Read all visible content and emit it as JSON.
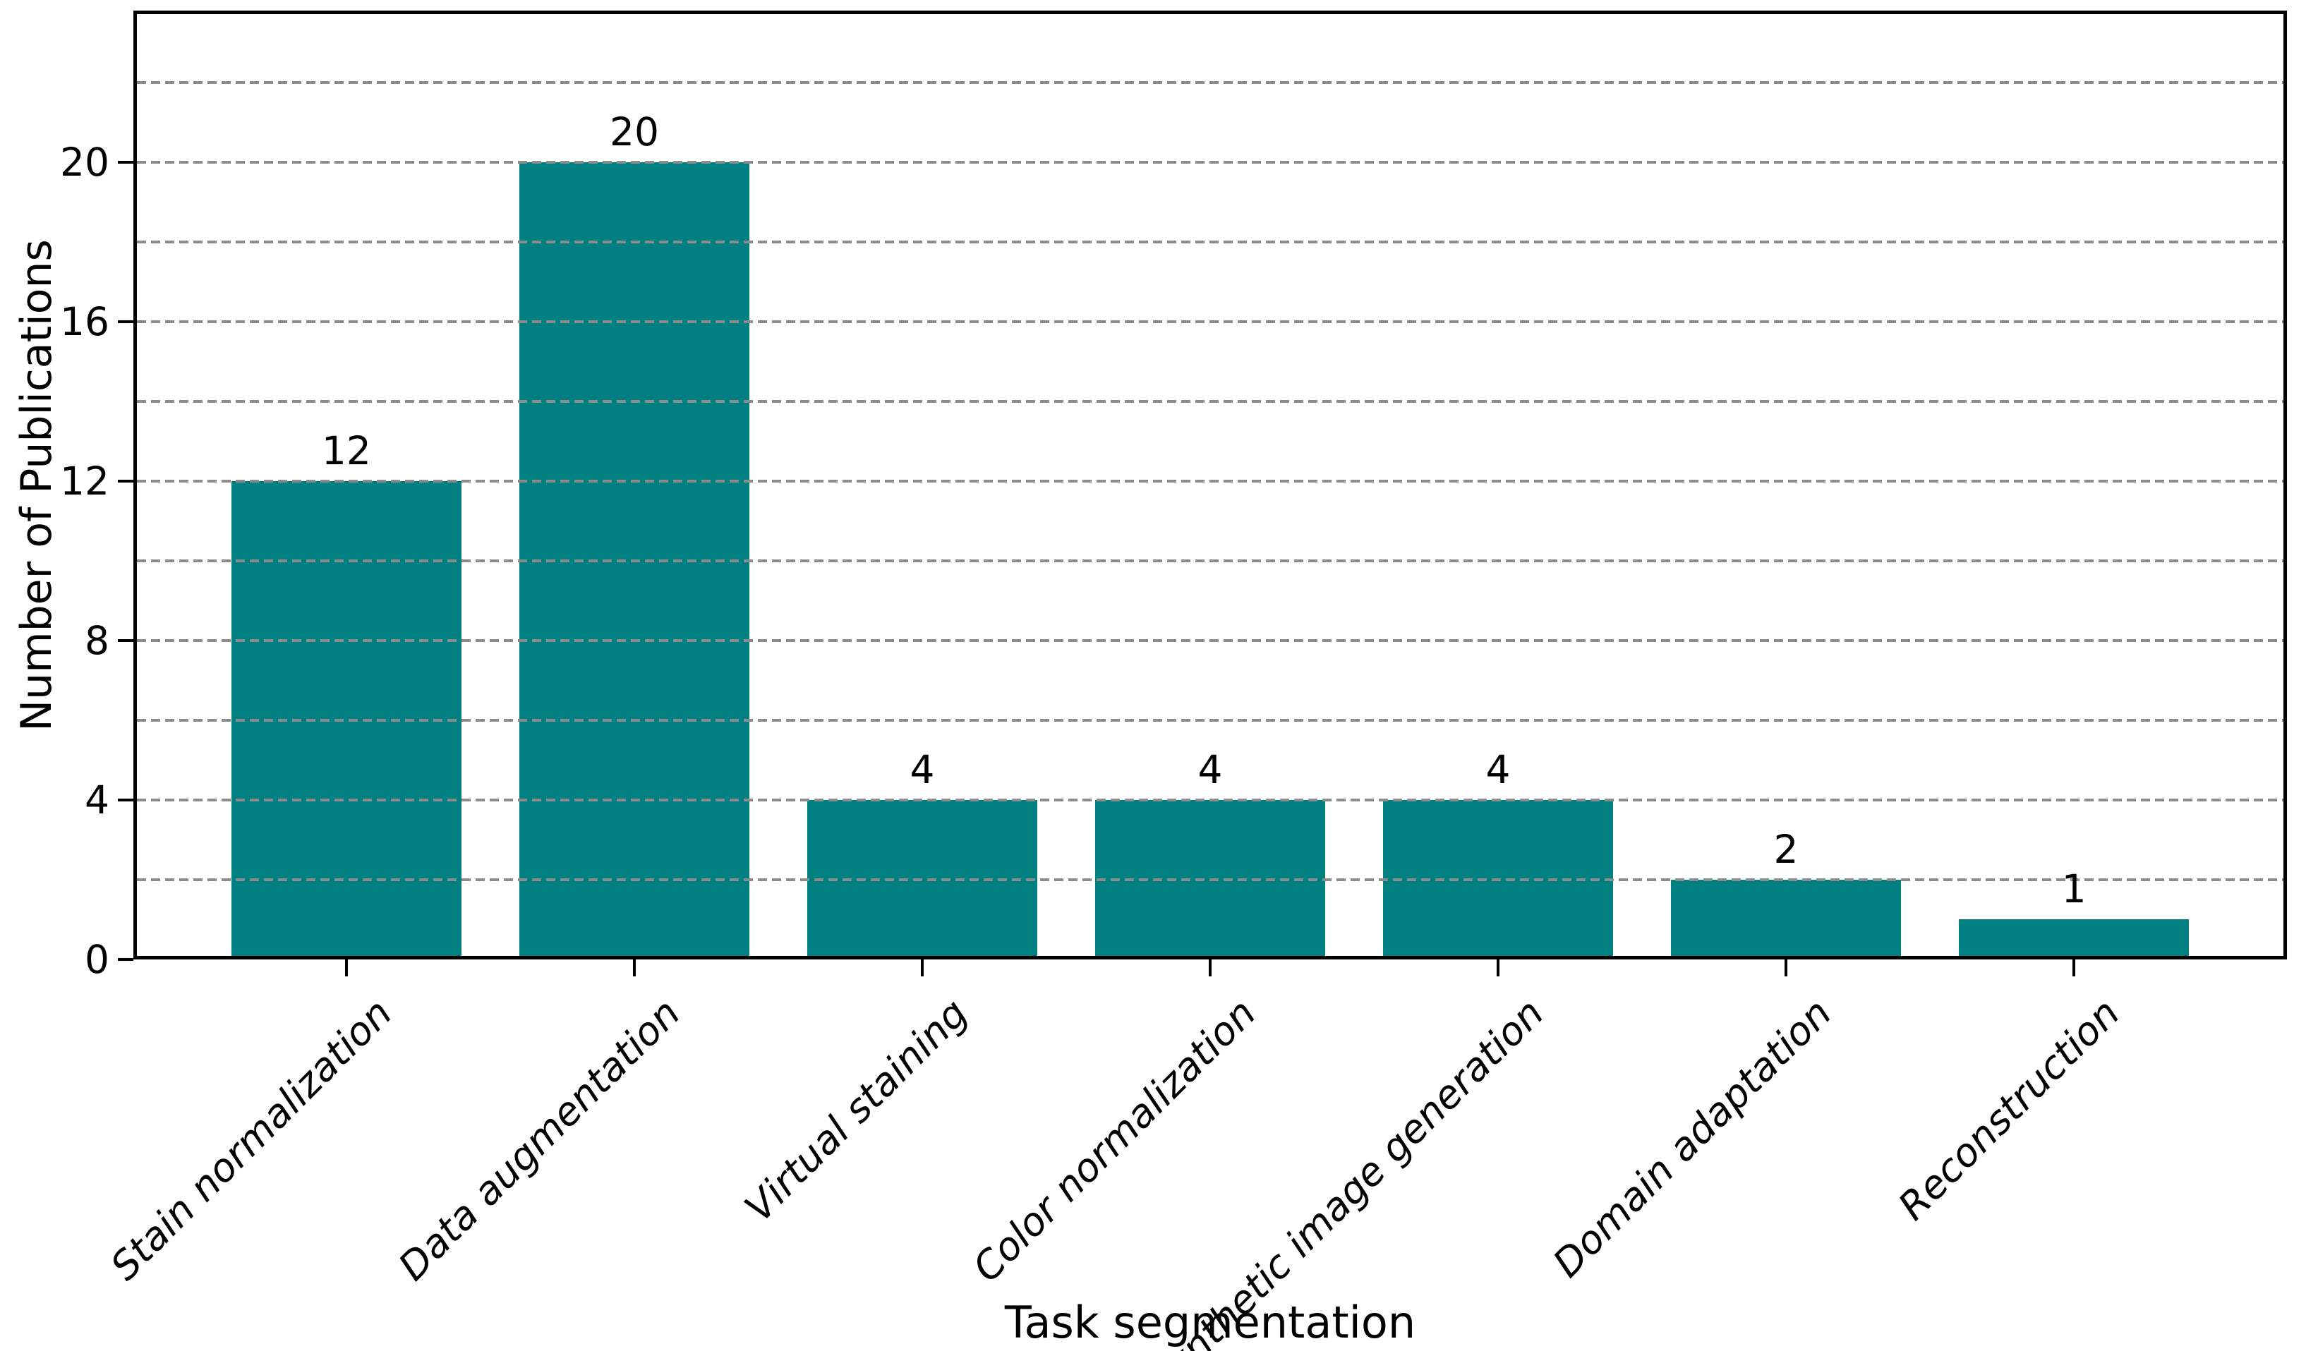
{
  "chart_data": {
    "type": "bar",
    "title": "",
    "xlabel": "Task segmentation",
    "ylabel": "Number of Publications",
    "categories": [
      "Stain normalization",
      "Data augmentation",
      "Virtual staining",
      "Color normalization",
      "Synthetic image generation",
      "Domain adaptation",
      "Reconstruction"
    ],
    "values": [
      12,
      20,
      4,
      4,
      4,
      2,
      1
    ],
    "value_labels": [
      "12",
      "20",
      "4",
      "4",
      "4",
      "2",
      "1"
    ],
    "yticks": [
      0,
      4,
      8,
      12,
      16,
      20
    ],
    "ylim": [
      0,
      23.8
    ],
    "grid": {
      "axis": "y",
      "step": 2,
      "max": 22,
      "style": "dashed",
      "color": "#8c8c8c",
      "on_top_of_bars": true
    },
    "bar_color": "#008080",
    "bar_width_fraction": 0.8,
    "x_tick_label_style": "italic",
    "x_tick_rotation_deg": 45,
    "legend_position": "none"
  }
}
